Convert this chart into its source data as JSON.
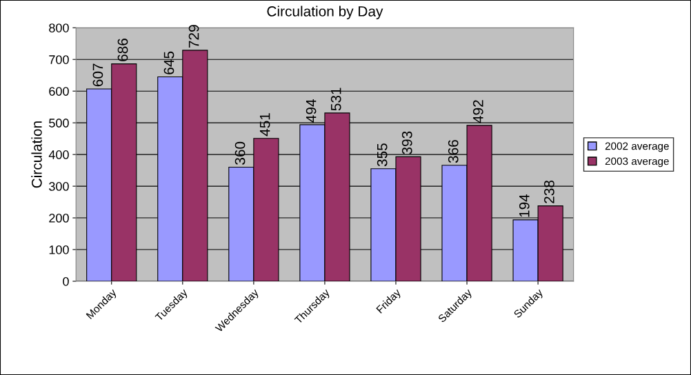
{
  "chart_data": {
    "type": "bar",
    "title": "Circulation by Day",
    "ylabel": "Circulation",
    "categories": [
      "Monday",
      "Tuesday",
      "Wednesday",
      "Thursday",
      "Friday",
      "Saturday",
      "Sunday"
    ],
    "series": [
      {
        "name": "2002 average",
        "color": "#9999ff",
        "values": [
          607,
          645,
          360,
          494,
          355,
          366,
          194
        ]
      },
      {
        "name": "2003 average",
        "color": "#993366",
        "values": [
          686,
          729,
          451,
          531,
          393,
          492,
          238
        ]
      }
    ],
    "ylim": [
      0,
      800
    ],
    "yticks": [
      0,
      100,
      200,
      300,
      400,
      500,
      600,
      700,
      800
    ],
    "grid": "y",
    "legend": "right",
    "data_labels": true
  }
}
